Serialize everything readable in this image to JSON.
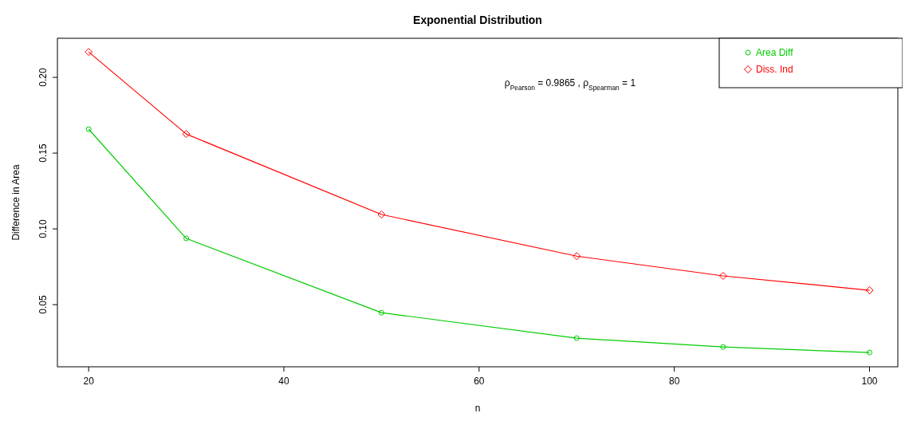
{
  "chart_data": {
    "type": "line",
    "title": "Exponential Distribution",
    "xlabel": "n",
    "ylabel": "Difference in Area",
    "x": [
      20,
      30,
      50,
      70,
      85,
      100
    ],
    "xlim": [
      16.8,
      102.9
    ],
    "xticks": [
      20,
      40,
      60,
      80,
      100
    ],
    "ylim": [
      0.009,
      0.2258
    ],
    "yticks": [
      {
        "value": 0.05,
        "label": "0.05"
      },
      {
        "value": 0.1,
        "label": "0.10"
      },
      {
        "value": 0.15,
        "label": "0.15"
      },
      {
        "value": 0.2,
        "label": "0.20"
      }
    ],
    "series": [
      {
        "name": "Area Diff",
        "color": "#00cc00",
        "marker": "circle",
        "values": [
          0.1658,
          0.0937,
          0.0447,
          0.0279,
          0.0221,
          0.0184
        ]
      },
      {
        "name": "Diss. Ind",
        "color": "#ff0000",
        "marker": "diamond",
        "values": [
          0.2168,
          0.1626,
          0.1095,
          0.082,
          0.069,
          0.0595
        ]
      }
    ],
    "annotations": [
      "ρ$_{Pearson}$ = 0.9865 , ρ$_{Spearman}$ = 1"
    ],
    "legend": "top right",
    "grid": false,
    "line_style": "solid"
  }
}
